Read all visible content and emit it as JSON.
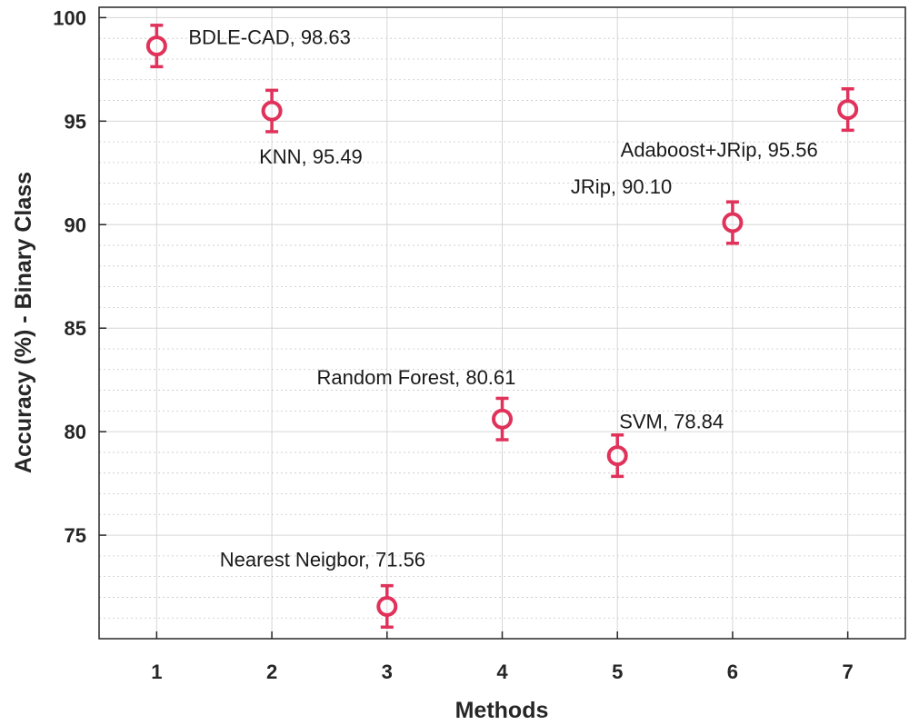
{
  "chart_data": {
    "type": "scatter",
    "title": "",
    "xlabel": "Methods",
    "ylabel": "Accuracy (%) - Binary Class",
    "xlim": [
      0.5,
      7.5
    ],
    "ylim": [
      70,
      100.5
    ],
    "xticks": [
      "1",
      "2",
      "3",
      "4",
      "5",
      "6",
      "7"
    ],
    "yticks": [
      "75",
      "80",
      "85",
      "90",
      "95",
      "100"
    ],
    "grid": true,
    "marker_color": "#e0325a",
    "series": [
      {
        "name": "Accuracy",
        "x": [
          1,
          2,
          3,
          4,
          5,
          6,
          7
        ],
        "y": [
          98.63,
          95.49,
          71.56,
          80.61,
          78.84,
          90.1,
          95.56
        ],
        "error": [
          1.0,
          1.0,
          1.0,
          1.0,
          1.0,
          1.0,
          1.0
        ],
        "labels": [
          "BDLE-CAD, 98.63",
          "KNN, 95.49",
          "Nearest Neigbor, 71.56",
          "Random Forest, 80.61",
          "SVM, 78.84",
          "JRip, 90.10",
          "Adaboost+JRip, 95.56"
        ]
      }
    ]
  }
}
